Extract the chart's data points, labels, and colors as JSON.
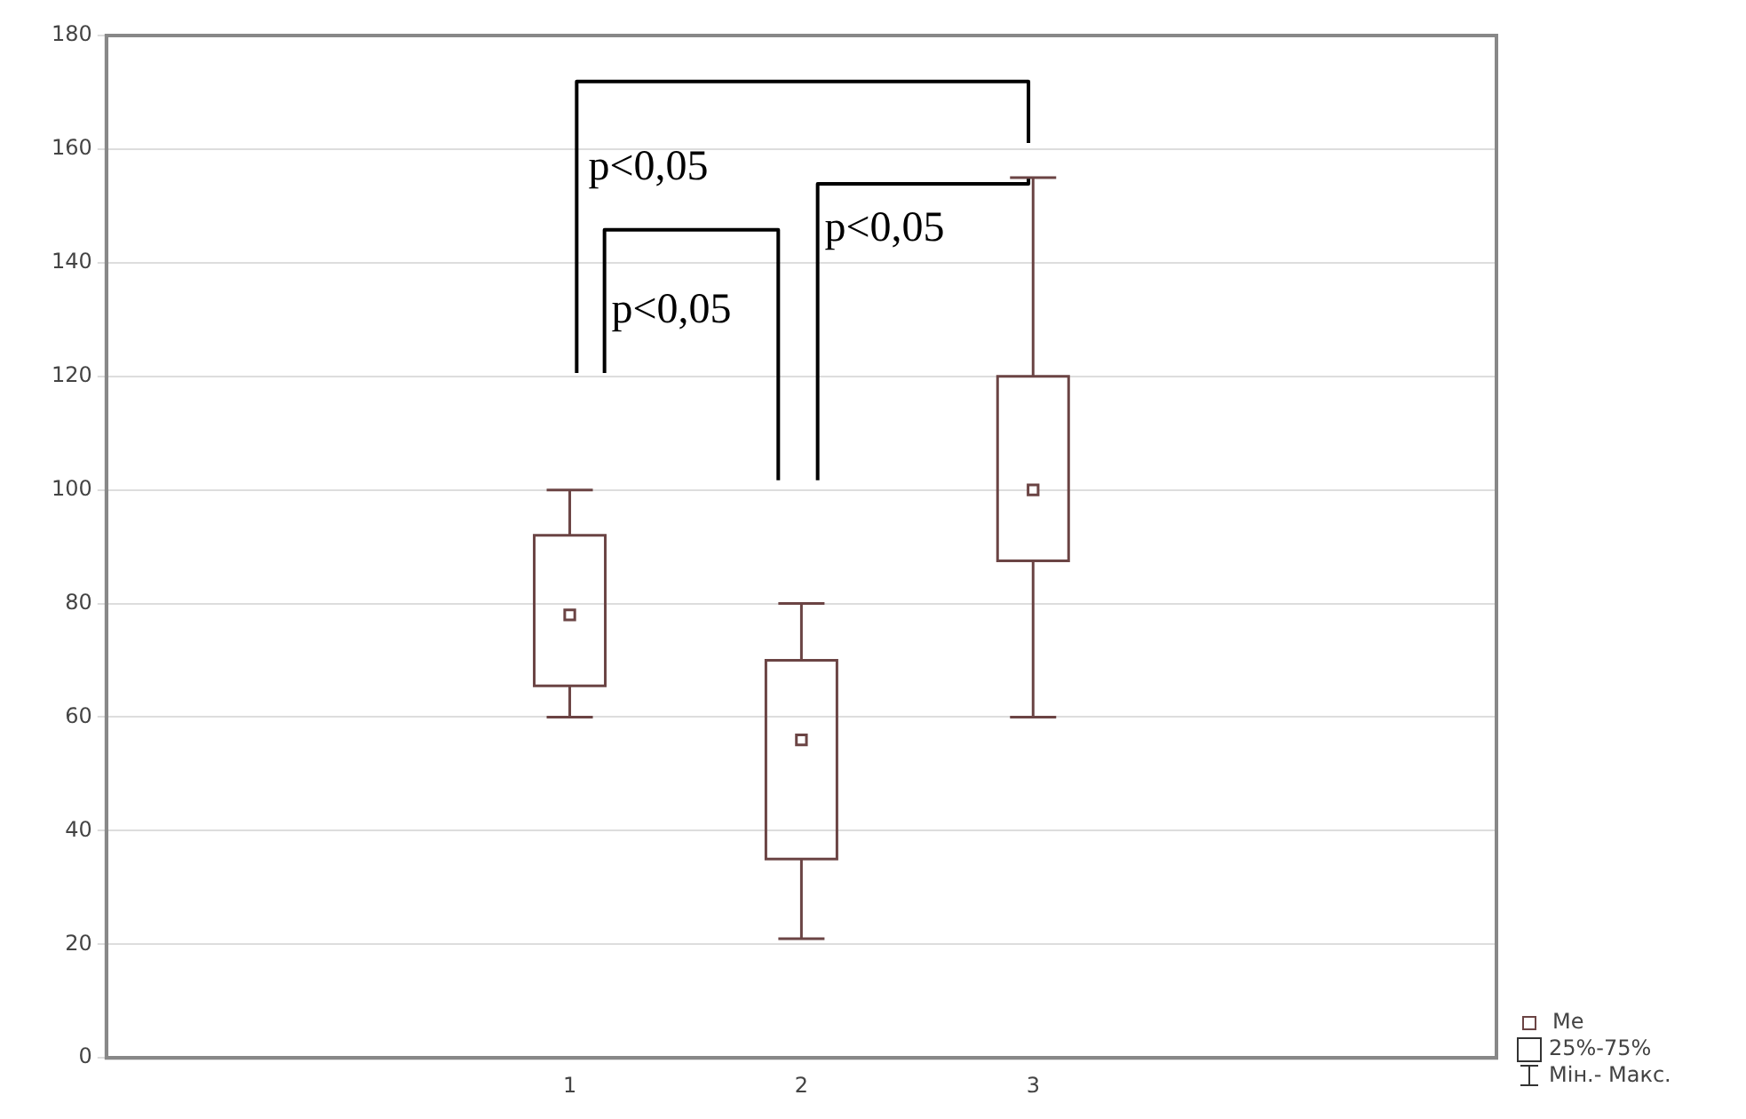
{
  "chart_data": {
    "type": "box",
    "categories": [
      null,
      "1",
      "2",
      "3",
      null
    ],
    "boxes": [
      null,
      {
        "low": 60,
        "q1": 65.5,
        "median": 78,
        "q3": 92,
        "high": 100
      },
      {
        "low": 21,
        "q1": 35,
        "median": 56,
        "q3": 70,
        "high": 80
      },
      {
        "low": 60,
        "q1": 87.5,
        "median": 100,
        "q3": 120,
        "high": 155
      },
      null
    ],
    "color": "#6b4444",
    "ylim": [
      0,
      180
    ],
    "yticks": [
      0,
      20,
      40,
      60,
      80,
      100,
      120,
      140,
      160,
      180
    ],
    "grid": "y",
    "annotations": [
      "p<0,05",
      "p<0,05",
      "p<0,05",
      "Me",
      "25%-75%",
      "Мін.- Макс."
    ]
  }
}
